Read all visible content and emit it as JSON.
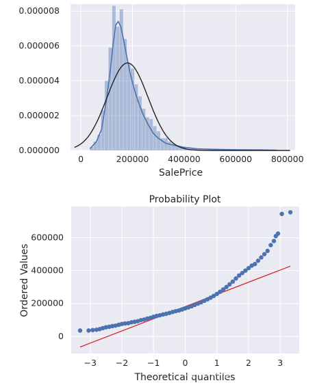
{
  "chart_data": [
    {
      "type": "bar",
      "xlabel": "SalePrice",
      "xlim": [
        -40000,
        830000
      ],
      "ylim": [
        0,
        8.4e-06
      ],
      "x_ticks": [
        0,
        200000,
        400000,
        600000,
        800000
      ],
      "x_tick_labels": [
        "0",
        "200000",
        "400000",
        "600000",
        "800000"
      ],
      "y_ticks": [
        0,
        2e-06,
        4e-06,
        6e-06,
        8e-06
      ],
      "y_tick_labels": [
        "0.000000",
        "0.000002",
        "0.000004",
        "0.000006",
        "0.000008"
      ],
      "bins": {
        "start": 34900,
        "width": 14402,
        "values": [
          2e-07,
          5e-07,
          9e-07,
          2.3e-06,
          4e-06,
          5.9e-06,
          8.3e-06,
          7.1e-06,
          8.1e-06,
          6.4e-06,
          5e-06,
          4.7e-06,
          3.8e-06,
          3.1e-06,
          2.4e-06,
          1.9e-06,
          1.8e-06,
          1.4e-06,
          1.1e-06,
          7e-07,
          7e-07,
          5e-07,
          4e-07,
          3e-07,
          2e-07,
          2e-07,
          1e-07,
          1e-07,
          1e-07,
          1e-07,
          5e-08,
          5e-08,
          3e-08,
          3e-08,
          2e-08,
          2e-08,
          2e-08,
          1e-08,
          1e-08,
          1e-08,
          1e-08,
          1e-08,
          1e-08,
          1e-08,
          1e-08,
          1e-08,
          1e-08,
          1e-08,
          1e-08,
          1e-08
        ]
      },
      "kde": {
        "x": [
          35000,
          60000,
          80000,
          100000,
          115000,
          125000,
          135000,
          145000,
          155000,
          165000,
          175000,
          190000,
          205000,
          220000,
          240000,
          260000,
          280000,
          300000,
          330000,
          360000,
          400000,
          450000,
          500000,
          560000,
          620000,
          700000,
          760000
        ],
        "y": [
          1e-07,
          5e-07,
          1.2e-06,
          3e-06,
          4.7e-06,
          6.1e-06,
          7.2e-06,
          7.4e-06,
          7.1e-06,
          6.4e-06,
          5.6e-06,
          4.5e-06,
          3.6e-06,
          2.9e-06,
          2.1e-06,
          1.5e-06,
          1e-06,
          7e-07,
          4e-07,
          3e-07,
          1.8e-07,
          1e-07,
          7e-08,
          5e-08,
          4e-08,
          3e-08,
          1e-08
        ]
      },
      "normal_fit": {
        "mean": 180921,
        "std": 79415
      }
    },
    {
      "type": "scatter",
      "title": "Probability Plot",
      "xlabel": "Theoretical quantiles",
      "ylabel": "Ordered Values",
      "xlim": [
        -3.6,
        3.6
      ],
      "ylim": [
        -105000,
        790000
      ],
      "x_ticks": [
        -3,
        -2,
        -1,
        0,
        1,
        2,
        3
      ],
      "x_tick_labels": [
        "−3",
        "−2",
        "−1",
        "0",
        "1",
        "2",
        "3"
      ],
      "y_ticks": [
        0,
        200000,
        400000,
        600000
      ],
      "y_tick_labels": [
        "0",
        "200000",
        "400000",
        "600000"
      ],
      "points": {
        "x": [
          -3.32,
          -3.05,
          -2.92,
          -2.8,
          -2.7,
          -2.6,
          -2.5,
          -2.4,
          -2.3,
          -2.2,
          -2.1,
          -2.0,
          -1.9,
          -1.8,
          -1.7,
          -1.6,
          -1.5,
          -1.4,
          -1.3,
          -1.2,
          -1.1,
          -1.0,
          -0.9,
          -0.8,
          -0.7,
          -0.6,
          -0.5,
          -0.4,
          -0.3,
          -0.2,
          -0.1,
          0.0,
          0.1,
          0.2,
          0.3,
          0.4,
          0.5,
          0.6,
          0.7,
          0.8,
          0.9,
          1.0,
          1.1,
          1.2,
          1.3,
          1.4,
          1.5,
          1.6,
          1.7,
          1.8,
          1.9,
          2.0,
          2.1,
          2.2,
          2.3,
          2.4,
          2.5,
          2.6,
          2.7,
          2.8,
          2.86,
          2.93,
          3.05,
          3.32
        ],
        "y": [
          35000,
          35000,
          37900,
          40000,
          44000,
          50000,
          55000,
          58000,
          62000,
          65000,
          70000,
          75000,
          78000,
          80000,
          85000,
          88000,
          92000,
          98000,
          102000,
          108000,
          112000,
          119000,
          124000,
          128000,
          133000,
          137000,
          142000,
          148000,
          153000,
          157000,
          163000,
          170000,
          176000,
          183000,
          191000,
          199000,
          207000,
          216000,
          225000,
          235000,
          246000,
          258000,
          271000,
          285000,
          300000,
          316000,
          333000,
          352000,
          370000,
          385000,
          400000,
          415000,
          430000,
          440000,
          460000,
          480000,
          500000,
          520000,
          555000,
          580000,
          610000,
          625000,
          745000,
          755000
        ]
      },
      "fit_line": {
        "slope": 74160,
        "intercept": 180921,
        "x_range": [
          -3.32,
          3.32
        ]
      }
    }
  ],
  "watermark": "https://blog.csdn.net/RachelJiang"
}
